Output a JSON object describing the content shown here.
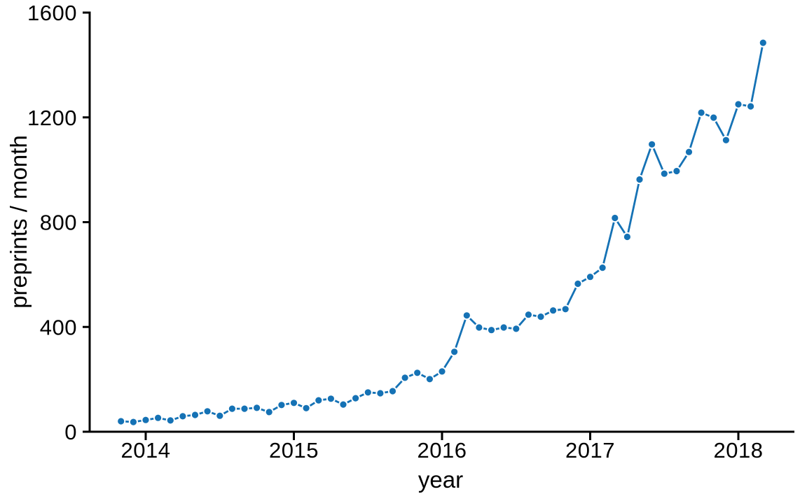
{
  "figure": {
    "background_color": "#ffffff",
    "accent_color": "#1572b5",
    "text_color": "#000000",
    "marker_edge_color": "#ffffff"
  },
  "chart_data": {
    "type": "line",
    "title": "",
    "xlabel": "year",
    "ylabel": "preprints / month",
    "ylim": [
      0,
      1600
    ],
    "xlim": [
      2013.6,
      2018.4
    ],
    "yticks": [
      0,
      400,
      800,
      1200,
      1600
    ],
    "y_tick_labels": [
      "0",
      "400",
      "800",
      "1200",
      "1600"
    ],
    "xticks": [
      2014,
      2015,
      2016,
      2017,
      2018
    ],
    "x_tick_labels": [
      "2014",
      "2015",
      "2016",
      "2017",
      "2018"
    ],
    "grid": false,
    "legend": null,
    "marker": "circle",
    "line_style": "solid",
    "series": [
      {
        "name": "preprints-per-month",
        "x": [
          "2013-11",
          "2013-12",
          "2014-01",
          "2014-02",
          "2014-03",
          "2014-04",
          "2014-05",
          "2014-06",
          "2014-07",
          "2014-08",
          "2014-09",
          "2014-10",
          "2014-11",
          "2014-12",
          "2015-01",
          "2015-02",
          "2015-03",
          "2015-04",
          "2015-05",
          "2015-06",
          "2015-07",
          "2015-08",
          "2015-09",
          "2015-10",
          "2015-11",
          "2015-12",
          "2016-01",
          "2016-02",
          "2016-03",
          "2016-04",
          "2016-05",
          "2016-06",
          "2016-07",
          "2016-08",
          "2016-09",
          "2016-10",
          "2016-11",
          "2016-12",
          "2017-01",
          "2017-02",
          "2017-03",
          "2017-04",
          "2017-05",
          "2017-06",
          "2017-07",
          "2017-08",
          "2017-09",
          "2017-10",
          "2017-11",
          "2017-12",
          "2018-01",
          "2018-02",
          "2018-03"
        ],
        "values": [
          40,
          37,
          45,
          53,
          43,
          59,
          64,
          78,
          61,
          88,
          88,
          91,
          75,
          102,
          110,
          90,
          120,
          126,
          104,
          128,
          150,
          147,
          155,
          206,
          225,
          201,
          230,
          305,
          444,
          398,
          388,
          398,
          393,
          447,
          439,
          463,
          468,
          565,
          591,
          626,
          816,
          744,
          963,
          1097,
          985,
          995,
          1068,
          1218,
          1199,
          1113,
          1250,
          1242,
          1485
        ]
      }
    ]
  }
}
